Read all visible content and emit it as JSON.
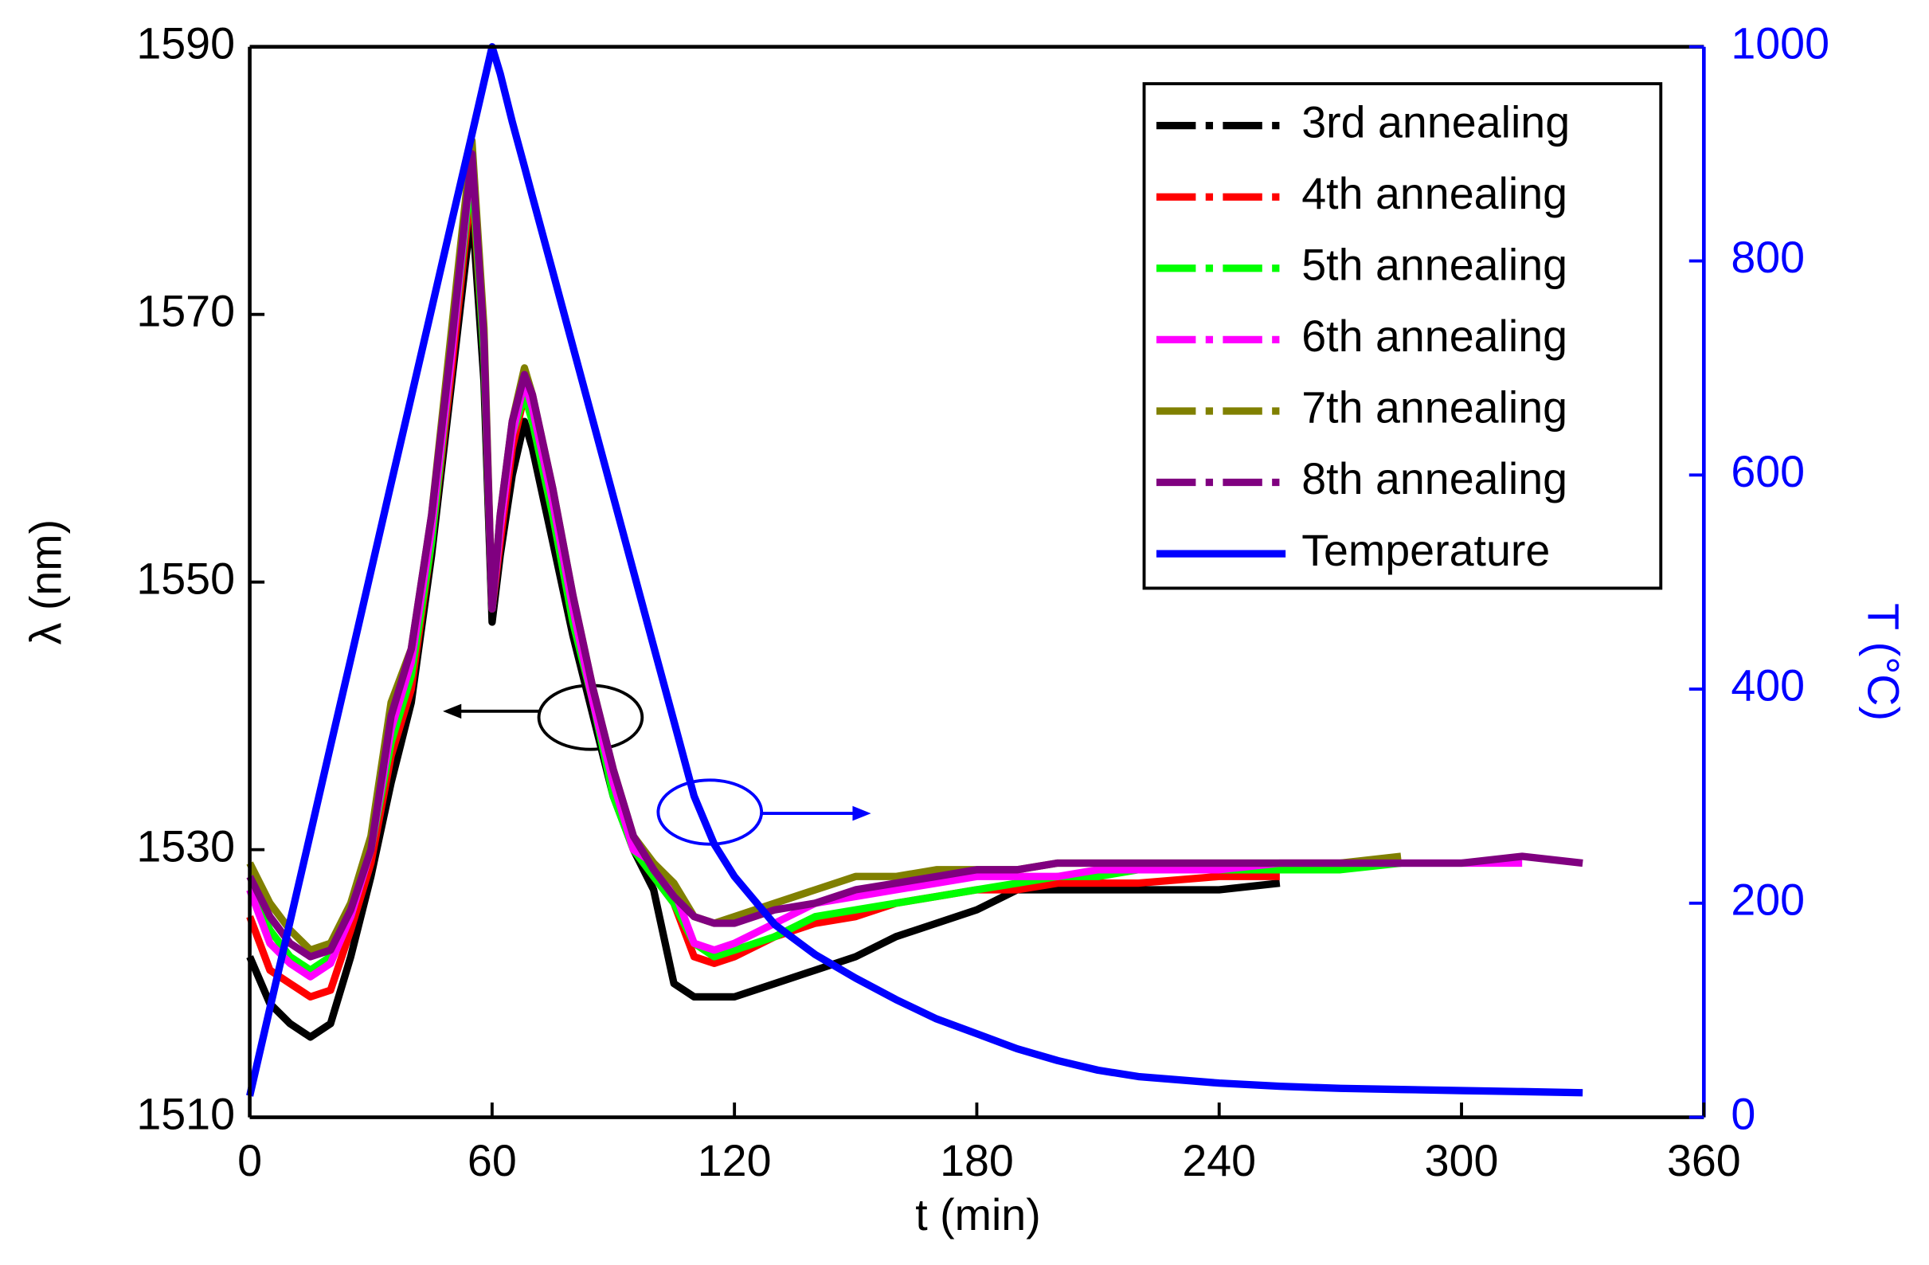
{
  "chart_data": {
    "type": "line",
    "xlabel": "t (min)",
    "ylabel": "λ (nm)",
    "y2label": "T (°C)",
    "x": [
      0,
      5,
      10,
      15,
      20,
      25,
      30,
      35,
      40,
      45,
      50,
      55,
      58,
      60,
      62,
      65,
      68,
      70,
      75,
      80,
      85,
      90,
      95,
      100,
      105,
      110,
      115,
      120,
      130,
      140,
      150,
      160,
      170,
      180,
      190,
      200,
      210,
      220,
      240,
      255,
      270,
      285,
      300,
      315,
      330
    ],
    "xlim": [
      0,
      360
    ],
    "xticks": [
      0,
      60,
      120,
      180,
      240,
      300,
      360
    ],
    "ylim": [
      1510,
      1590
    ],
    "yticks": [
      1510,
      1530,
      1550,
      1570,
      1590
    ],
    "y2lim": [
      0,
      1000
    ],
    "y2ticks": [
      0,
      200,
      400,
      600,
      800,
      1000
    ],
    "legend": "upper right",
    "series": [
      {
        "name": "3rd annealing",
        "color": "#000000",
        "values": [
          1522,
          1518.5,
          1517,
          1516,
          1517,
          1522,
          1528,
          1535,
          1541,
          1552,
          1565,
          1578,
          1565,
          1547,
          1552,
          1558,
          1562,
          1560,
          1553,
          1546,
          1540,
          1534,
          1530,
          1527,
          1520,
          1519,
          1519,
          1519,
          1520,
          1521,
          1522,
          1523.5,
          1524.5,
          1525.5,
          1527,
          1527,
          1527,
          1527,
          1527,
          1527.5,
          null,
          null,
          null,
          null,
          null
        ]
      },
      {
        "name": "4th annealing",
        "color": "#ff0000",
        "values": [
          1525,
          1521,
          1520,
          1519,
          1519.5,
          1524,
          1529,
          1537,
          1542,
          1553,
          1566,
          1580,
          1567,
          1548,
          1553,
          1560,
          1564,
          1562,
          1555,
          1547,
          1541,
          1535,
          1530,
          1528,
          1526,
          1522,
          1521.5,
          1522,
          1523.5,
          1524.5,
          1525,
          1526,
          1526.5,
          1527,
          1527,
          1527.5,
          1527.5,
          1527.5,
          1528,
          1528,
          null,
          null,
          null,
          null,
          null
        ]
      },
      {
        "name": "5th annealing",
        "color": "#00ff00",
        "values": [
          1527,
          1524,
          1522,
          1521,
          1522,
          1525,
          1530,
          1538,
          1543,
          1553,
          1567,
          1581,
          1567,
          1548,
          1554,
          1561,
          1564,
          1562,
          1555,
          1547,
          1541,
          1534,
          1530,
          1528,
          1526,
          1523,
          1522,
          1522.5,
          1523.5,
          1525,
          1525.5,
          1526,
          1526.5,
          1527,
          1527.5,
          1528,
          1528,
          1528.5,
          1528.5,
          1528.5,
          1528.5,
          1529,
          null,
          null,
          null
        ]
      },
      {
        "name": "6th annealing",
        "color": "#ff00ff",
        "values": [
          1527,
          1523,
          1521.5,
          1520.5,
          1521.5,
          1525,
          1530,
          1539,
          1544,
          1554,
          1567,
          1582,
          1568,
          1548,
          1554,
          1561,
          1565,
          1563,
          1556,
          1548,
          1541,
          1535,
          1530,
          1529,
          1527,
          1523,
          1522.5,
          1523,
          1524.5,
          1526,
          1526.5,
          1527,
          1527.5,
          1528,
          1528,
          1528,
          1528.5,
          1528.5,
          1528.5,
          1529,
          1529,
          1529,
          1529,
          1529,
          null
        ]
      },
      {
        "name": "7th annealing",
        "color": "#808000",
        "values": [
          1529,
          1526,
          1524,
          1522.5,
          1523,
          1526,
          1531,
          1541,
          1545,
          1555,
          1569,
          1583,
          1569,
          1548,
          1555,
          1562,
          1566,
          1564,
          1557,
          1549,
          1542,
          1536,
          1531,
          1529,
          1527.5,
          1525,
          1524.5,
          1525,
          1526,
          1527,
          1528,
          1528,
          1528.5,
          1528.5,
          1528.5,
          1529,
          1529,
          1529,
          1529,
          1529,
          1529,
          1529.5,
          null,
          null,
          null
        ]
      },
      {
        "name": "8th annealing",
        "color": "#800080",
        "values": [
          1528,
          1525,
          1523,
          1522,
          1522.5,
          1525.5,
          1530,
          1540,
          1545,
          1555,
          1568,
          1582,
          1568,
          1548,
          1555,
          1562,
          1565.5,
          1564,
          1557,
          1549,
          1542,
          1536,
          1531,
          1528.5,
          1526.5,
          1525,
          1524.5,
          1524.5,
          1525.5,
          1526,
          1527,
          1527.5,
          1528,
          1528.5,
          1528.5,
          1529,
          1529,
          1529,
          1529,
          1529,
          1529,
          1529,
          1529,
          1529.5,
          1529
        ]
      },
      {
        "name": "Temperature",
        "color": "#0000ff",
        "axis": "y2",
        "values": [
          20,
          102,
          183,
          265,
          347,
          428,
          510,
          592,
          673,
          755,
          837,
          918,
          967,
          1000,
          975,
          930,
          888,
          860,
          790,
          720,
          650,
          580,
          510,
          440,
          370,
          300,
          255,
          225,
          180,
          152,
          130,
          110,
          92,
          78,
          64,
          53,
          44,
          38,
          32,
          29,
          27,
          26,
          25,
          24,
          23
        ]
      }
    ]
  }
}
